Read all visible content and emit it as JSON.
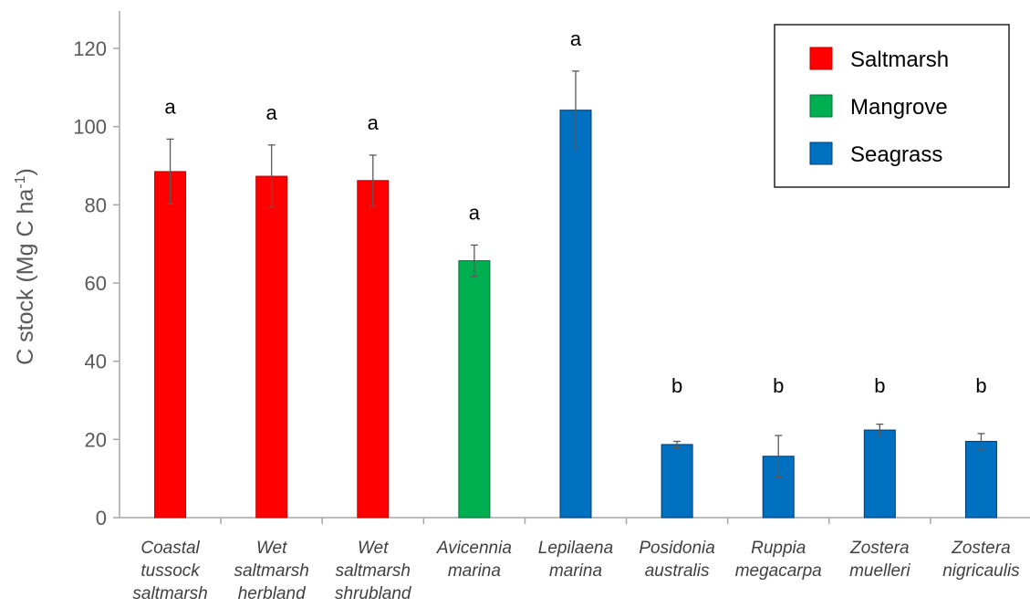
{
  "chart_data": {
    "type": "bar",
    "title": "",
    "xlabel": "",
    "ylabel_parts": {
      "main": "C stock (Mg C ha",
      "sup": "-1",
      "close": ")"
    },
    "ylim": [
      0,
      130
    ],
    "yticks": [
      0,
      20,
      40,
      60,
      80,
      100,
      120
    ],
    "grid": false,
    "legend_position": "top-right",
    "legend": [
      {
        "name": "Saltmarsh",
        "color": "#ff0000"
      },
      {
        "name": "Mangrove",
        "color": "#00b050"
      },
      {
        "name": "Seagrass",
        "color": "#0070c0"
      }
    ],
    "categories": [
      {
        "lines": [
          "Coastal",
          "tussock",
          "saltmarsh"
        ],
        "group": "Saltmarsh",
        "value": 88.5,
        "error": 8.3,
        "sig": "a"
      },
      {
        "lines": [
          "Wet",
          "saltmarsh",
          "herbland"
        ],
        "group": "Saltmarsh",
        "value": 87.3,
        "error": 8.0,
        "sig": "a"
      },
      {
        "lines": [
          "Wet",
          "saltmarsh",
          "shrubland"
        ],
        "group": "Saltmarsh",
        "value": 86.2,
        "error": 6.5,
        "sig": "a"
      },
      {
        "lines": [
          "Avicennia",
          "marina"
        ],
        "group": "Mangrove",
        "value": 65.7,
        "error": 4.0,
        "sig": "a"
      },
      {
        "lines": [
          "Lepilaena",
          "marina"
        ],
        "group": "Seagrass",
        "value": 104.2,
        "error": 10.0,
        "sig": "a"
      },
      {
        "lines": [
          "Posidonia",
          "australis"
        ],
        "group": "Seagrass",
        "value": 18.7,
        "error": 0.8,
        "sig": "b"
      },
      {
        "lines": [
          "Ruppia",
          "megacarpa"
        ],
        "group": "Seagrass",
        "value": 15.7,
        "error": 5.3,
        "sig": "b"
      },
      {
        "lines": [
          "Zostera",
          "muelleri"
        ],
        "group": "Seagrass",
        "value": 22.4,
        "error": 1.5,
        "sig": "b"
      },
      {
        "lines": [
          "Zostera",
          "nigricaulis"
        ],
        "group": "Seagrass",
        "value": 19.5,
        "error": 2.0,
        "sig": "b"
      }
    ]
  }
}
